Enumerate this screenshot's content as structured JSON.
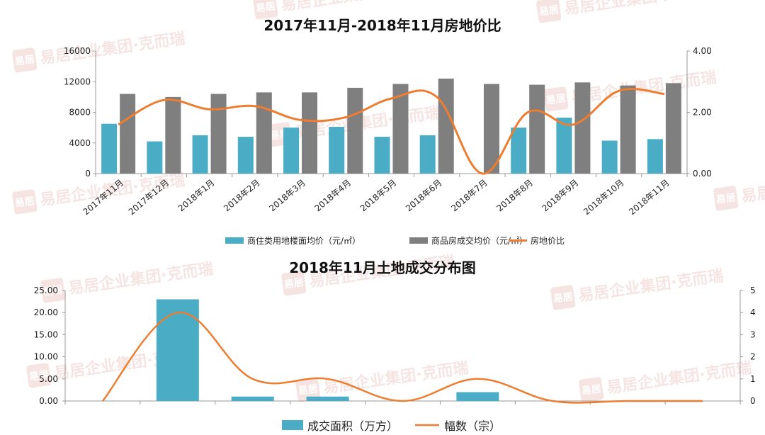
{
  "chart_data": [
    {
      "type": "bar",
      "title": "2017年11月-2018年11月房地价比",
      "categories": [
        "2017年11月",
        "2017年12月",
        "2018年1月",
        "2018年2月",
        "2018年3月",
        "2018年4月",
        "2018年5月",
        "2018年6月",
        "2018年7月",
        "2018年8月",
        "2018年9月",
        "2018年10月",
        "2018年11月"
      ],
      "series": [
        {
          "name": "商住类用地楼面均价（元/㎡）",
          "kind": "bar",
          "axis": "left",
          "color": "#4bacc6",
          "values": [
            6500,
            4200,
            5000,
            4800,
            6000,
            6100,
            4800,
            5000,
            0,
            6000,
            7300,
            4300,
            4500
          ]
        },
        {
          "name": "商品房成交均价（元/㎡）",
          "kind": "bar",
          "axis": "left",
          "color": "#7f7f7f",
          "values": [
            10400,
            10000,
            10400,
            10600,
            10600,
            11200,
            11700,
            12400,
            11700,
            11600,
            11900,
            11500,
            11800
          ]
        },
        {
          "name": "房地价比",
          "kind": "line",
          "axis": "right",
          "color": "#ed7d31",
          "values": [
            1.6,
            2.4,
            2.1,
            2.2,
            1.75,
            1.84,
            2.45,
            2.5,
            0,
            2.0,
            1.6,
            2.7,
            2.6
          ]
        }
      ],
      "yleft": {
        "min": 0,
        "max": 16000,
        "ticks": [
          "0",
          "4000",
          "8000",
          "12000",
          "16000"
        ]
      },
      "yright": {
        "min": 0,
        "max": 4,
        "ticks": [
          "0.00",
          "2.00",
          "4.00"
        ]
      },
      "legend": "bottom"
    },
    {
      "type": "bar",
      "title": "2018年11月土地成交分布图",
      "categories": [
        "",
        "",
        "",
        "",
        "",
        "",
        "",
        "",
        ""
      ],
      "series": [
        {
          "name": "成交面积（万方）",
          "kind": "bar",
          "axis": "left",
          "color": "#4bacc6",
          "values": [
            0,
            23,
            1,
            1,
            0,
            2,
            0,
            0,
            0
          ]
        },
        {
          "name": "幅数（宗）",
          "kind": "line",
          "axis": "right",
          "color": "#ed7d31",
          "values": [
            0,
            4,
            1,
            1,
            0,
            1,
            0,
            0,
            0
          ]
        }
      ],
      "yleft": {
        "min": 0,
        "max": 25,
        "ticks": [
          "0.00",
          "5.00",
          "10.00",
          "15.00",
          "20.00",
          "25.00"
        ]
      },
      "yright": {
        "min": 0,
        "max": 5,
        "ticks": [
          "0",
          "1",
          "2",
          "3",
          "4",
          "5"
        ]
      },
      "legend": "bottom"
    }
  ],
  "watermark": {
    "text": "易居企业集团·克而瑞",
    "seal": "易居"
  }
}
